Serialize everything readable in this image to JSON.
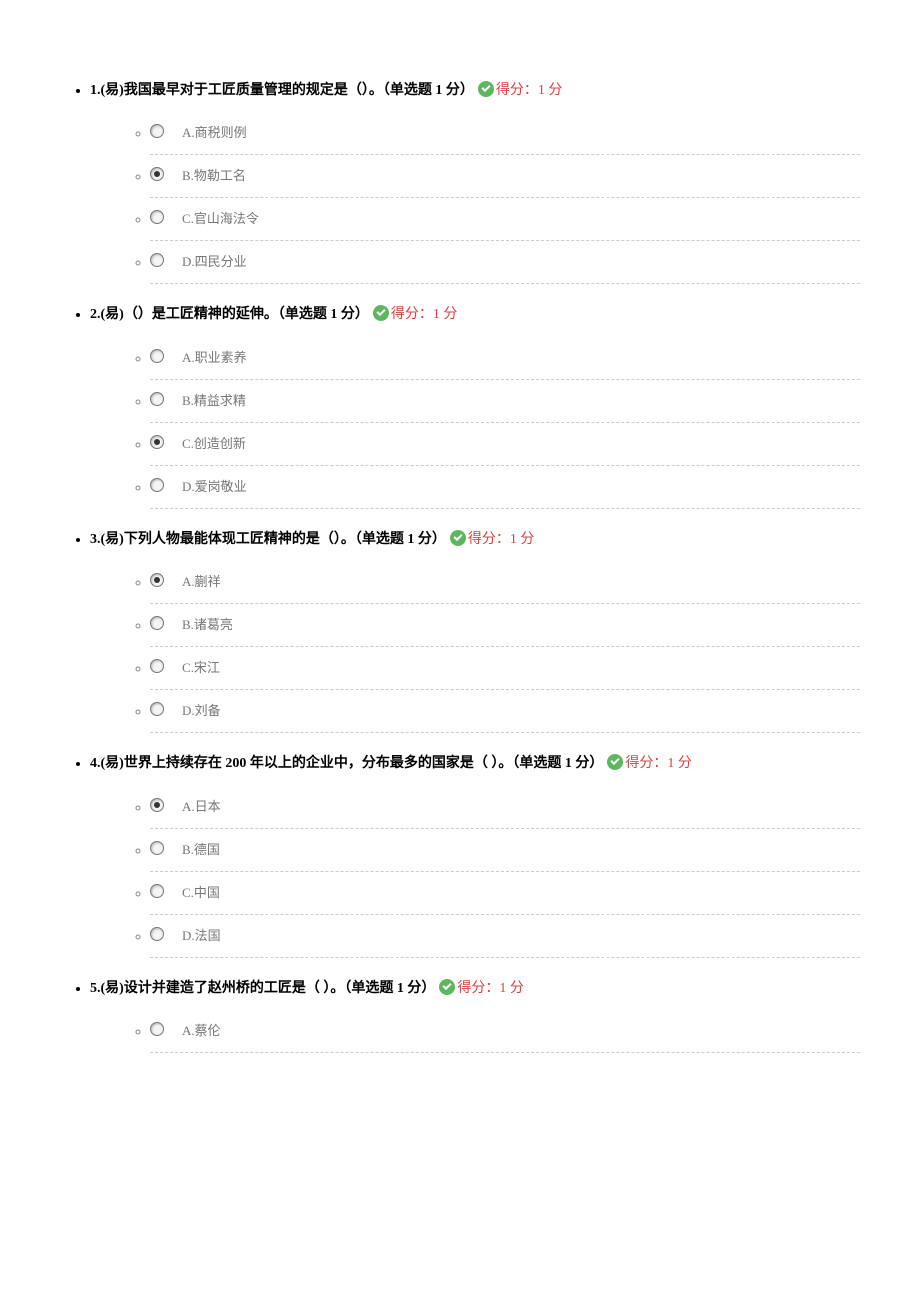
{
  "questions": [
    {
      "number": "1.",
      "difficulty": "(易)",
      "stem": "我国最早对于工匠质量管理的规定是（）。",
      "type_label": "（单选题 1 分）",
      "score_label": "得分：1 分",
      "selected_index": 1,
      "options": [
        {
          "letter": "A.",
          "text": "商税则例"
        },
        {
          "letter": "B.",
          "text": "物勒工名"
        },
        {
          "letter": "C.",
          "text": "官山海法令"
        },
        {
          "letter": "D.",
          "text": "四民分业"
        }
      ]
    },
    {
      "number": "2.",
      "difficulty": "(易)",
      "stem": "（）是工匠精神的延伸。",
      "type_label": "（单选题 1 分）",
      "score_label": "得分：1 分",
      "selected_index": 2,
      "options": [
        {
          "letter": "A.",
          "text": "职业素养"
        },
        {
          "letter": "B.",
          "text": "精益求精"
        },
        {
          "letter": "C.",
          "text": "创造创新"
        },
        {
          "letter": "D.",
          "text": "爱岗敬业"
        }
      ]
    },
    {
      "number": "3.",
      "difficulty": "(易)",
      "stem": "下列人物最能体现工匠精神的是（）。",
      "type_label": "（单选题 1 分）",
      "score_label": "得分：1 分",
      "selected_index": 0,
      "options": [
        {
          "letter": "A.",
          "text": "蒯祥"
        },
        {
          "letter": "B.",
          "text": "诸葛亮"
        },
        {
          "letter": "C.",
          "text": "宋江"
        },
        {
          "letter": "D.",
          "text": "刘备"
        }
      ]
    },
    {
      "number": "4.",
      "difficulty": "(易)",
      "stem": "世界上持续存在 200 年以上的企业中，分布最多的国家是（ ）。",
      "type_label": "（单选题 1 分）",
      "score_label": "得分：1 分",
      "selected_index": 0,
      "options": [
        {
          "letter": "A.",
          "text": "日本"
        },
        {
          "letter": "B.",
          "text": "德国"
        },
        {
          "letter": "C.",
          "text": "中国"
        },
        {
          "letter": "D.",
          "text": "法国"
        }
      ]
    },
    {
      "number": "5.",
      "difficulty": "(易)",
      "stem": "设计并建造了赵州桥的工匠是（ ）。",
      "type_label": "（单选题 1 分）",
      "score_label": "得分：1 分",
      "selected_index": -1,
      "options": [
        {
          "letter": "A.",
          "text": "蔡伦"
        }
      ]
    }
  ],
  "colors": {
    "score_text": "#de3f3f",
    "check_bg": "#5cb85c",
    "option_text": "#777777",
    "divider": "#cccccc",
    "body_text": "#000000",
    "background": "#ffffff"
  }
}
